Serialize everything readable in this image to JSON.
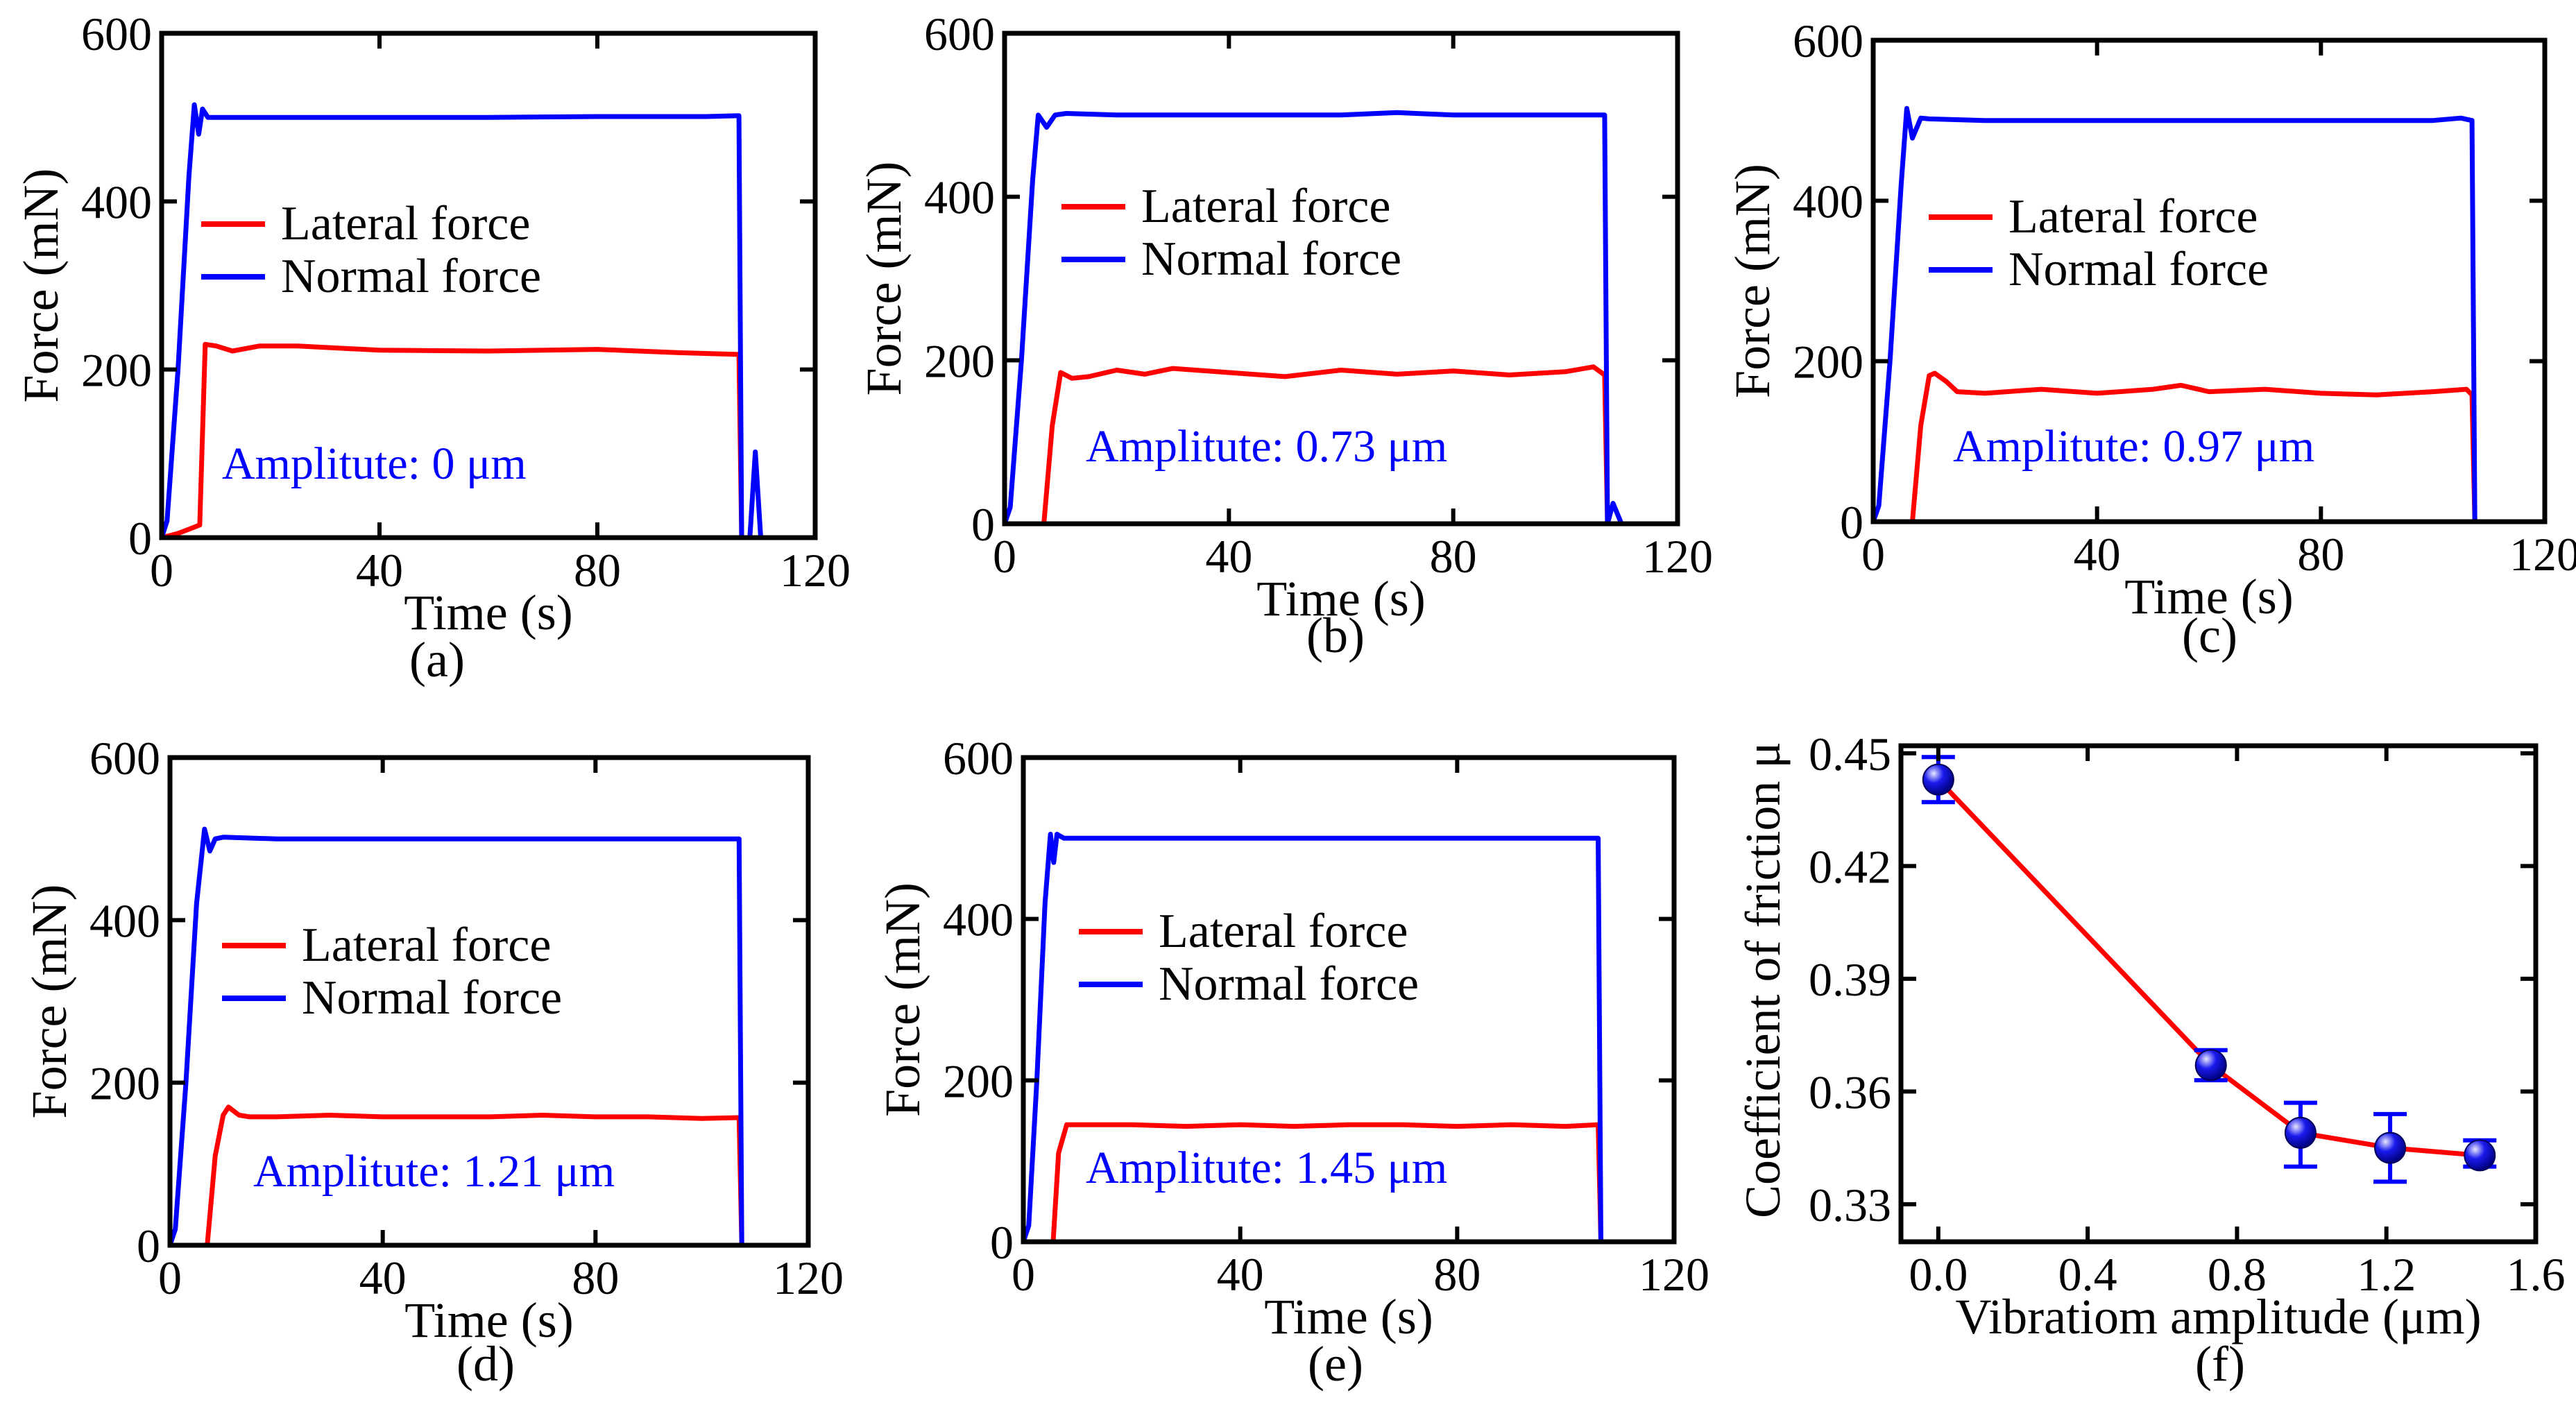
{
  "colors": {
    "lateral": "#ff0000",
    "normal": "#0000ff",
    "annotation": "#0000ff",
    "marker": "#1a1aee"
  },
  "chart_data": [
    {
      "id": "a",
      "type": "line",
      "panel_label": "(a)",
      "xlabel": "Time (s)",
      "ylabel": "Force (mN)",
      "xlim": [
        0,
        120
      ],
      "ylim": [
        0,
        600
      ],
      "xticks": [
        0,
        40,
        80,
        120
      ],
      "yticks": [
        0,
        200,
        400,
        600
      ],
      "annotation": "Amplitute: 0 μm",
      "series": [
        {
          "name": "Lateral force",
          "color": "#ff0000",
          "x": [
            0,
            3,
            5,
            7,
            8,
            10,
            13,
            18,
            25,
            40,
            60,
            80,
            95,
            106,
            106.5,
            108
          ],
          "y": [
            0,
            5,
            10,
            15,
            230,
            228,
            222,
            228,
            228,
            223,
            222,
            224,
            220,
            218,
            0,
            0
          ]
        },
        {
          "name": "Normal force",
          "color": "#0000ff",
          "x": [
            0,
            1,
            3,
            5,
            6,
            6.8,
            7.5,
            8.5,
            20,
            40,
            60,
            80,
            100,
            106,
            106.5,
            108,
            109,
            110
          ],
          "y": [
            0,
            20,
            200,
            430,
            515,
            480,
            510,
            500,
            500,
            500,
            500,
            501,
            501,
            502,
            0,
            0,
            102,
            0
          ]
        }
      ]
    },
    {
      "id": "b",
      "type": "line",
      "panel_label": "(b)",
      "xlabel": "Time (s)",
      "ylabel": "Force (mN)",
      "xlim": [
        0,
        120
      ],
      "ylim": [
        0,
        600
      ],
      "xticks": [
        0,
        40,
        80,
        120
      ],
      "yticks": [
        0,
        200,
        400,
        600
      ],
      "annotation": "Amplitute: 0.73 μm",
      "series": [
        {
          "name": "Lateral force",
          "color": "#ff0000",
          "x": [
            7,
            8.5,
            10,
            12,
            15,
            20,
            25,
            30,
            40,
            50,
            60,
            70,
            80,
            90,
            100,
            105,
            107,
            107.5,
            109
          ],
          "y": [
            0,
            120,
            185,
            178,
            180,
            188,
            183,
            190,
            185,
            180,
            188,
            183,
            187,
            182,
            186,
            192,
            182,
            0,
            0
          ]
        },
        {
          "name": "Normal force",
          "color": "#0000ff",
          "x": [
            0,
            1,
            3,
            5,
            6,
            7.5,
            9,
            11,
            20,
            40,
            60,
            70,
            80,
            100,
            107,
            107.5,
            108.5,
            110
          ],
          "y": [
            0,
            20,
            200,
            420,
            500,
            485,
            500,
            502,
            500,
            500,
            500,
            503,
            500,
            500,
            500,
            0,
            25,
            0
          ]
        }
      ]
    },
    {
      "id": "c",
      "type": "line",
      "panel_label": "(c)",
      "xlabel": "Time (s)",
      "ylabel": "Force (mN)",
      "xlim": [
        0,
        120
      ],
      "ylim": [
        0,
        600
      ],
      "xticks": [
        0,
        40,
        80,
        120
      ],
      "yticks": [
        0,
        200,
        400,
        600
      ],
      "annotation": "Amplitute: 0.97 μm",
      "series": [
        {
          "name": "Lateral force",
          "color": "#ff0000",
          "x": [
            7,
            8.5,
            10,
            11,
            13,
            15,
            20,
            30,
            40,
            50,
            55,
            60,
            70,
            80,
            90,
            100,
            106,
            107,
            107.5,
            109
          ],
          "y": [
            0,
            120,
            182,
            185,
            175,
            162,
            160,
            165,
            160,
            165,
            170,
            162,
            165,
            160,
            158,
            162,
            165,
            158,
            0,
            0
          ]
        },
        {
          "name": "Normal force",
          "color": "#0000ff",
          "x": [
            0,
            1,
            3,
            5,
            6,
            7,
            8.5,
            10,
            20,
            40,
            60,
            80,
            100,
            105,
            107,
            107.5,
            109
          ],
          "y": [
            0,
            20,
            200,
            420,
            515,
            478,
            503,
            502,
            500,
            500,
            500,
            500,
            500,
            503,
            500,
            0,
            0
          ]
        }
      ]
    },
    {
      "id": "d",
      "type": "line",
      "panel_label": "(d)",
      "xlabel": "Time (s)",
      "ylabel": "Force (mN)",
      "xlim": [
        0,
        120
      ],
      "ylim": [
        0,
        600
      ],
      "xticks": [
        0,
        40,
        80,
        120
      ],
      "yticks": [
        0,
        200,
        400,
        600
      ],
      "annotation": "Amplitute: 1.21 μm",
      "series": [
        {
          "name": "Lateral force",
          "color": "#ff0000",
          "x": [
            7,
            8.5,
            10,
            11,
            13,
            15,
            20,
            30,
            40,
            50,
            60,
            70,
            80,
            90,
            100,
            107,
            107.5,
            109
          ],
          "y": [
            0,
            110,
            160,
            170,
            160,
            158,
            158,
            160,
            158,
            158,
            158,
            160,
            158,
            158,
            156,
            157,
            0,
            0
          ]
        },
        {
          "name": "Normal force",
          "color": "#0000ff",
          "x": [
            0,
            1,
            3,
            5,
            6.5,
            7.5,
            8.5,
            10,
            20,
            40,
            60,
            80,
            100,
            107,
            107.5,
            109
          ],
          "y": [
            0,
            20,
            200,
            420,
            512,
            485,
            500,
            502,
            500,
            500,
            500,
            500,
            500,
            500,
            0,
            0
          ]
        }
      ]
    },
    {
      "id": "e",
      "type": "line",
      "panel_label": "(e)",
      "xlabel": "Time (s)",
      "ylabel": "Force (mN)",
      "xlim": [
        0,
        120
      ],
      "ylim": [
        0,
        600
      ],
      "xticks": [
        0,
        40,
        80,
        120
      ],
      "yticks": [
        0,
        200,
        400,
        600
      ],
      "annotation": "Amplitute: 1.45 μm",
      "series": [
        {
          "name": "Lateral force",
          "color": "#ff0000",
          "x": [
            0,
            4,
            5.5,
            6.5,
            8,
            10,
            20,
            30,
            40,
            50,
            60,
            70,
            80,
            90,
            100,
            106,
            106.5,
            108
          ],
          "y": [
            0,
            0,
            0,
            110,
            145,
            145,
            145,
            143,
            145,
            143,
            145,
            145,
            143,
            145,
            143,
            145,
            0,
            0
          ]
        },
        {
          "name": "Normal force",
          "color": "#0000ff",
          "x": [
            0,
            1,
            2.5,
            4,
            5,
            5.6,
            6.2,
            7.5,
            20,
            40,
            60,
            80,
            100,
            106,
            106.5,
            108
          ],
          "y": [
            0,
            20,
            200,
            420,
            505,
            470,
            505,
            500,
            500,
            500,
            500,
            500,
            500,
            500,
            0,
            0
          ]
        }
      ]
    },
    {
      "id": "f",
      "type": "scatter",
      "panel_label": "(f)",
      "xlabel": "Vibratiom amplitude (μm)",
      "ylabel": "Coefficient of friction μ",
      "xlim": [
        -0.1,
        1.6
      ],
      "ylim": [
        0.32,
        0.452
      ],
      "xticks": [
        0.0,
        0.4,
        0.8,
        1.2,
        1.6
      ],
      "xtick_labels": [
        "0.0",
        "0.4",
        "0.8",
        "1.2",
        "1.6"
      ],
      "yticks": [
        0.33,
        0.36,
        0.39,
        0.42,
        0.45
      ],
      "ytick_labels": [
        "0.33",
        "0.36",
        "0.39",
        "0.42",
        "0.45"
      ],
      "x": [
        0.0,
        0.73,
        0.97,
        1.21,
        1.45
      ],
      "y": [
        0.443,
        0.367,
        0.349,
        0.345,
        0.343
      ],
      "err_low": [
        0.437,
        0.363,
        0.34,
        0.336,
        0.34
      ],
      "err_high": [
        0.449,
        0.371,
        0.357,
        0.354,
        0.347
      ]
    }
  ]
}
